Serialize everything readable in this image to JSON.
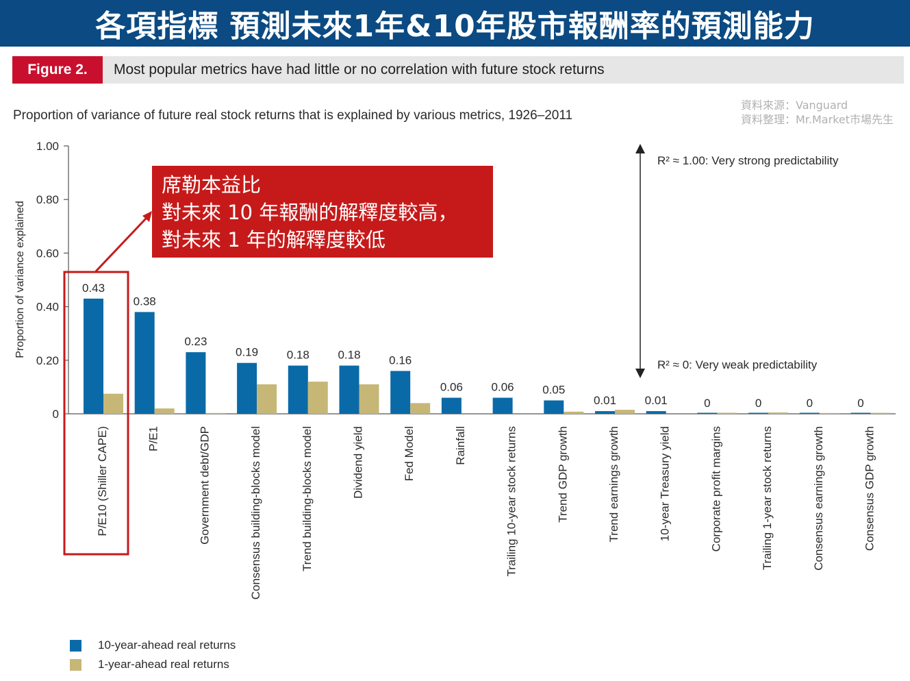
{
  "banner": {
    "title": "各項指標  預測未來1年&10年股市報酬率的預測能力"
  },
  "figure": {
    "label": "Figure 2.",
    "title": "Most popular metrics have had little or no correlation with future stock returns",
    "subtitle": "Proportion of variance of future real stock returns that is explained by various metrics, 1926–2011"
  },
  "source": {
    "line1": "資料來源：Vanguard",
    "line2": "資料整理：Mr.Market市場先生"
  },
  "callout": {
    "line1": "席勒本益比",
    "line2": "對未來 10 年報酬的解釋度較高，",
    "line3": "對未來 1 年的解釋度較低"
  },
  "colors": {
    "ten_year": "#0a6aa8",
    "one_year": "#c6b777",
    "accent_red": "#c8102e",
    "banner": "#0b4a82"
  },
  "chart_data": {
    "type": "bar",
    "ylabel": "Proportion of variance explained",
    "ylim": [
      0,
      1.0
    ],
    "yticks": [
      "1.00",
      "0.80",
      "0.60",
      "0.40",
      "0.20",
      "0"
    ],
    "categories": [
      "P/E10 (Shiller CAPE)",
      "P/E1",
      "Government debt/GDP",
      "Consensus building-blocks model",
      "Trend building-blocks model",
      "Dividend yield",
      "Fed Model",
      "Rainfall",
      "Trailing 10-year stock returns",
      "Trend GDP growth",
      "Trend earnings growth",
      "10-year Treasury yield",
      "Corporate profit margins",
      "Trailing 1-year stock returns",
      "Consensus earnings growth",
      "Consensus GDP growth"
    ],
    "series": [
      {
        "name": "10-year-ahead real returns",
        "values": [
          0.43,
          0.38,
          0.23,
          0.19,
          0.18,
          0.18,
          0.16,
          0.06,
          0.06,
          0.05,
          0.01,
          0.01,
          0,
          0,
          0,
          0
        ],
        "labels": [
          "0.43",
          "0.38",
          "0.23",
          "0.19",
          "0.18",
          "0.18",
          "0.16",
          "0.06",
          "0.06",
          "0.05",
          "0.01",
          "0.01",
          "0",
          "0",
          "0",
          "0"
        ]
      },
      {
        "name": "1-year-ahead real returns",
        "values": [
          0.075,
          0.02,
          0.003,
          0.11,
          0.12,
          0.11,
          0.04,
          0.0,
          0.0,
          0.008,
          0.015,
          0.0,
          0.004,
          0.005,
          0.003,
          0.0
        ]
      }
    ],
    "annotations": {
      "top": "R² ≈ 1.00: Very strong predictability",
      "bottom": "R² ≈ 0: Very weak predictability"
    }
  }
}
